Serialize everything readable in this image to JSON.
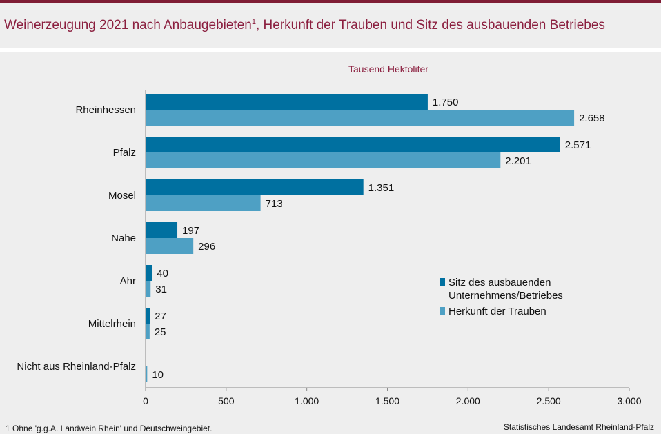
{
  "header": {
    "title": "Weinerzeugung 2021 nach Anbaugebieten",
    "title_sup": "1",
    "title_rest": ", Herkunft der Trauben und Sitz des ausbauenden Betriebes"
  },
  "footer": {
    "footnote": "1 Ohne 'g.g.A. Landwein Rhein' und Deutschweingebiet.",
    "source": "Statistisches Landesamt Rheinland-Pfalz"
  },
  "colors": {
    "title": "#8b1f3f",
    "series_1": "#0070a0",
    "series_2": "#4ea0c4"
  },
  "chart_data": {
    "type": "bar",
    "orientation": "horizontal",
    "unit_label": "Tausend  Hektoliter",
    "categories": [
      "Rheinhessen",
      "Pfalz",
      "Mosel",
      "Nahe",
      "Ahr",
      "Mittelrhein",
      "Nicht aus Rheinland-Pfalz"
    ],
    "series": [
      {
        "name": "Sitz des ausbauenden Unternehmens/Betriebes",
        "legend_lines": [
          "Sitz des ausbauenden",
          "Unternehmens/Betriebes"
        ],
        "color": "#0070a0",
        "values": [
          1750,
          2571,
          1351,
          197,
          40,
          27,
          null
        ],
        "labels": [
          "1.750",
          "2.571",
          "1.351",
          "197",
          "40",
          "27",
          ""
        ]
      },
      {
        "name": "Herkunft der Trauben",
        "legend_lines": [
          "Herkunft der Trauben"
        ],
        "color": "#4ea0c4",
        "values": [
          2658,
          2201,
          713,
          296,
          31,
          25,
          10
        ],
        "labels": [
          "2.658",
          "2.201",
          "713",
          "296",
          "31",
          "25",
          "10"
        ]
      }
    ],
    "xlim": [
      0,
      3000
    ],
    "xticks": [
      0,
      500,
      1000,
      1500,
      2000,
      2500,
      3000
    ],
    "xtick_labels": [
      "0",
      "500",
      "1.000",
      "1.500",
      "2.000",
      "2.500",
      "3.000"
    ],
    "grid": false,
    "legend": "right"
  }
}
